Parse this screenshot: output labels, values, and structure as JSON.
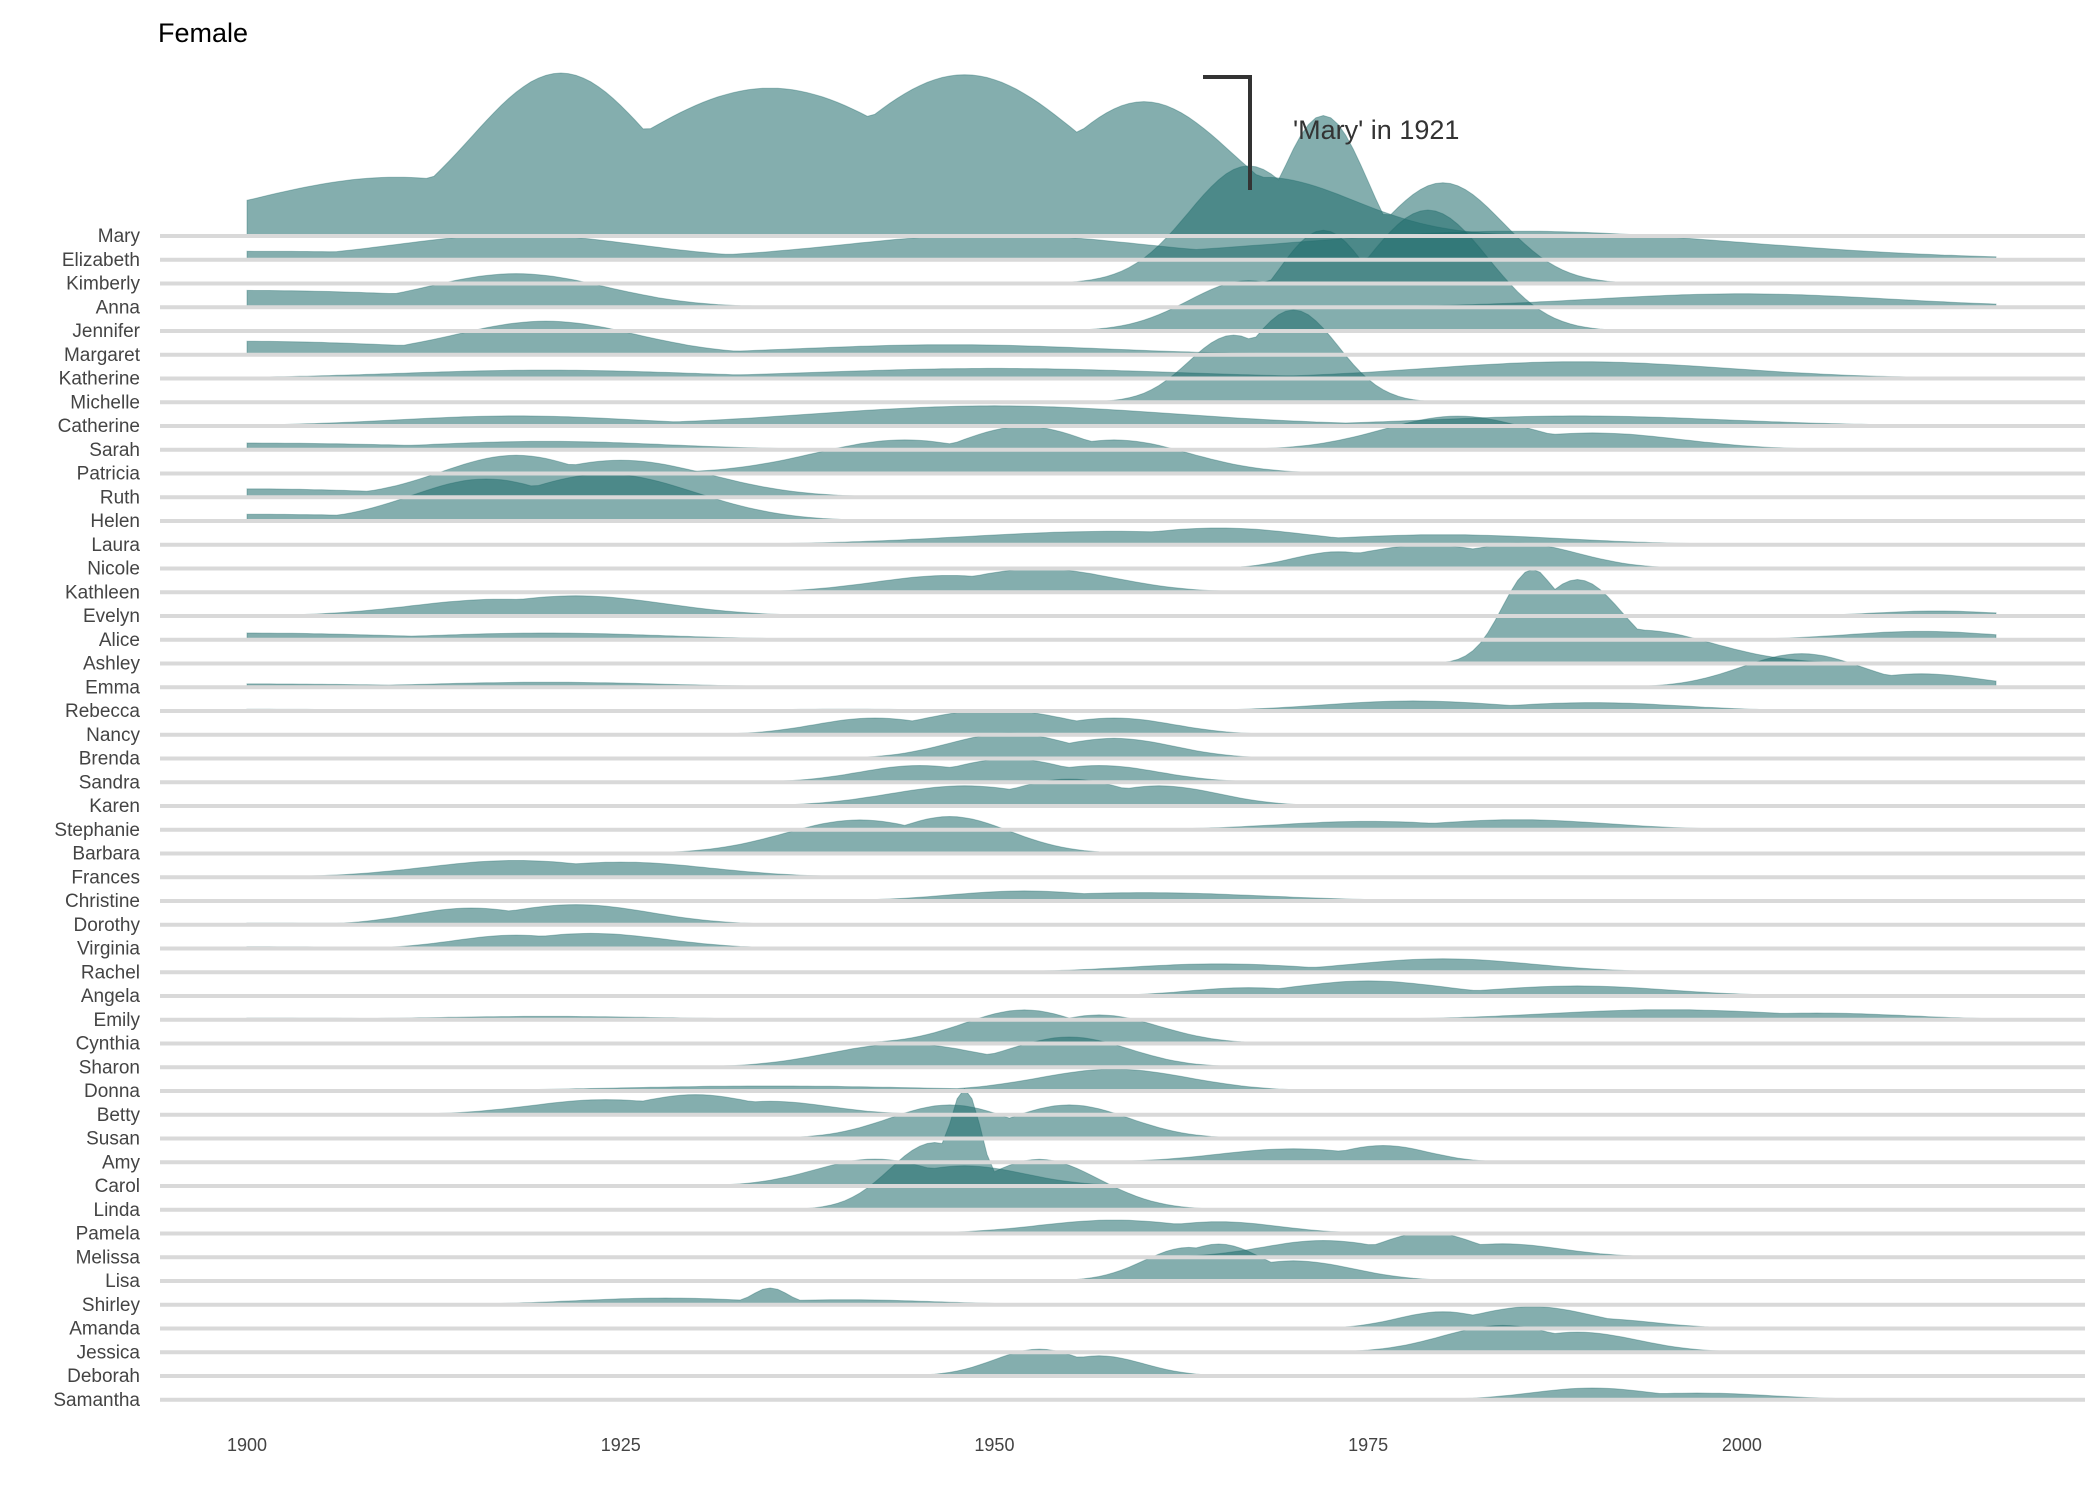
{
  "chart_data": {
    "type": "ridgeline",
    "title": "Female",
    "xlabel": "",
    "ylabel": "",
    "xlim": [
      1900,
      2017
    ],
    "x_ticks": [
      1900,
      1925,
      1950,
      1975,
      2000
    ],
    "grid": false,
    "colors": {
      "fill": "#1f6b6b",
      "baseline": "#d9d9d9"
    },
    "annotation": {
      "text": "'Mary' in 1921",
      "target_series": "Mary",
      "x": 1921
    },
    "series": [
      {
        "name": "Mary",
        "peaks": [
          [
            1900,
            0.15,
            12
          ],
          [
            1910,
            0.35,
            10
          ],
          [
            1921,
            0.97,
            6
          ],
          [
            1935,
            0.88,
            10
          ],
          [
            1948,
            0.96,
            8
          ],
          [
            1960,
            0.8,
            6
          ],
          [
            1968,
            0.35,
            6
          ]
        ]
      },
      {
        "name": "Elizabeth",
        "peaks": [
          [
            1900,
            0.05,
            20
          ],
          [
            1918,
            0.15,
            8
          ],
          [
            1950,
            0.15,
            10
          ],
          [
            1985,
            0.17,
            15
          ]
        ]
      },
      {
        "name": "Kimberly",
        "peaks": [
          [
            1967,
            0.7,
            4
          ],
          [
            1972,
            1.0,
            3
          ],
          [
            1980,
            0.6,
            4
          ]
        ]
      },
      {
        "name": "Anna",
        "peaks": [
          [
            1900,
            0.1,
            15
          ],
          [
            1918,
            0.2,
            6
          ],
          [
            2000,
            0.08,
            10
          ]
        ]
      },
      {
        "name": "Jennifer",
        "peaks": [
          [
            1967,
            0.3,
            4
          ],
          [
            1972,
            0.6,
            3
          ],
          [
            1979,
            0.72,
            4
          ]
        ]
      },
      {
        "name": "Margaret",
        "peaks": [
          [
            1900,
            0.08,
            12
          ],
          [
            1920,
            0.2,
            6
          ],
          [
            1947,
            0.06,
            10
          ]
        ]
      },
      {
        "name": "Katherine",
        "peaks": [
          [
            1920,
            0.05,
            10
          ],
          [
            1950,
            0.06,
            12
          ],
          [
            1989,
            0.1,
            10
          ]
        ]
      },
      {
        "name": "Michelle",
        "peaks": [
          [
            1966,
            0.4,
            3
          ],
          [
            1970,
            0.55,
            3
          ]
        ]
      },
      {
        "name": "Catherine",
        "peaks": [
          [
            1918,
            0.06,
            8
          ],
          [
            1950,
            0.12,
            12
          ],
          [
            1989,
            0.06,
            10
          ]
        ]
      },
      {
        "name": "Sarah",
        "peaks": [
          [
            1900,
            0.04,
            12
          ],
          [
            1920,
            0.05,
            8
          ],
          [
            1981,
            0.2,
            5
          ],
          [
            1990,
            0.1,
            6
          ]
        ]
      },
      {
        "name": "Patricia",
        "peaks": [
          [
            1944,
            0.2,
            6
          ],
          [
            1952,
            0.28,
            5
          ],
          [
            1958,
            0.2,
            5
          ]
        ]
      },
      {
        "name": "Ruth",
        "peaks": [
          [
            1900,
            0.05,
            10
          ],
          [
            1918,
            0.25,
            5
          ],
          [
            1925,
            0.22,
            6
          ]
        ]
      },
      {
        "name": "Helen",
        "peaks": [
          [
            1900,
            0.04,
            12
          ],
          [
            1916,
            0.25,
            5
          ],
          [
            1924,
            0.28,
            6
          ]
        ]
      },
      {
        "name": "Laura",
        "peaks": [
          [
            1958,
            0.08,
            10
          ],
          [
            1965,
            0.1,
            6
          ],
          [
            1980,
            0.06,
            8
          ]
        ]
      },
      {
        "name": "Nicole",
        "peaks": [
          [
            1973,
            0.1,
            3
          ],
          [
            1979,
            0.14,
            5
          ],
          [
            1985,
            0.15,
            4
          ]
        ]
      },
      {
        "name": "Kathleen",
        "peaks": [
          [
            1947,
            0.1,
            5
          ],
          [
            1953,
            0.14,
            5
          ]
        ]
      },
      {
        "name": "Evelyn",
        "peaks": [
          [
            1917,
            0.1,
            6
          ],
          [
            1922,
            0.12,
            6
          ],
          [
            2013,
            0.03,
            4
          ]
        ]
      },
      {
        "name": "Alice",
        "peaks": [
          [
            1900,
            0.04,
            10
          ],
          [
            1920,
            0.04,
            8
          ],
          [
            2012,
            0.05,
            5
          ]
        ]
      },
      {
        "name": "Ashley",
        "peaks": [
          [
            1986,
            0.56,
            2
          ],
          [
            1989,
            0.5,
            3
          ],
          [
            1993,
            0.2,
            5
          ]
        ]
      },
      {
        "name": "Emma",
        "peaks": [
          [
            1900,
            0.02,
            10
          ],
          [
            1920,
            0.03,
            8
          ],
          [
            2004,
            0.2,
            4
          ],
          [
            2012,
            0.08,
            4
          ]
        ]
      },
      {
        "name": "Rebecca",
        "peaks": [
          [
            1900,
            0.01,
            10
          ],
          [
            1940,
            0.01,
            8
          ],
          [
            1978,
            0.06,
            6
          ],
          [
            1990,
            0.05,
            6
          ]
        ]
      },
      {
        "name": "Nancy",
        "peaks": [
          [
            1942,
            0.1,
            4
          ],
          [
            1950,
            0.15,
            5
          ],
          [
            1958,
            0.1,
            4
          ]
        ]
      },
      {
        "name": "Brenda",
        "peaks": [
          [
            1951,
            0.15,
            4
          ],
          [
            1958,
            0.12,
            4
          ]
        ]
      },
      {
        "name": "Sandra",
        "peaks": [
          [
            1945,
            0.1,
            4
          ],
          [
            1951,
            0.14,
            4
          ],
          [
            1957,
            0.1,
            4
          ]
        ]
      },
      {
        "name": "Karen",
        "peaks": [
          [
            1948,
            0.12,
            5
          ],
          [
            1955,
            0.16,
            4
          ],
          [
            1961,
            0.12,
            4
          ]
        ]
      },
      {
        "name": "Stephanie",
        "peaks": [
          [
            1975,
            0.05,
            6
          ],
          [
            1985,
            0.06,
            6
          ]
        ]
      },
      {
        "name": "Barbara",
        "peaks": [
          [
            1941,
            0.2,
            5
          ],
          [
            1947,
            0.22,
            4
          ]
        ]
      },
      {
        "name": "Frances",
        "peaks": [
          [
            1918,
            0.1,
            6
          ],
          [
            1925,
            0.09,
            6
          ]
        ]
      },
      {
        "name": "Christine",
        "peaks": [
          [
            1952,
            0.06,
            5
          ],
          [
            1960,
            0.05,
            8
          ]
        ]
      },
      {
        "name": "Dorothy",
        "peaks": [
          [
            1900,
            0.01,
            10
          ],
          [
            1915,
            0.1,
            4
          ],
          [
            1922,
            0.12,
            5
          ]
        ]
      },
      {
        "name": "Virginia",
        "peaks": [
          [
            1900,
            0.01,
            10
          ],
          [
            1918,
            0.08,
            4
          ],
          [
            1923,
            0.09,
            5
          ]
        ]
      },
      {
        "name": "Rachel",
        "peaks": [
          [
            1965,
            0.05,
            6
          ],
          [
            1980,
            0.08,
            6
          ]
        ]
      },
      {
        "name": "Angela",
        "peaks": [
          [
            1967,
            0.05,
            4
          ],
          [
            1975,
            0.09,
            5
          ],
          [
            1989,
            0.06,
            6
          ]
        ]
      },
      {
        "name": "Emily",
        "peaks": [
          [
            1900,
            0.01,
            10
          ],
          [
            1920,
            0.02,
            8
          ],
          [
            1995,
            0.06,
            8
          ],
          [
            2005,
            0.04,
            6
          ]
        ]
      },
      {
        "name": "Cynthia",
        "peaks": [
          [
            1952,
            0.2,
            4
          ],
          [
            1957,
            0.17,
            4
          ]
        ]
      },
      {
        "name": "Sharon",
        "peaks": [
          [
            1944,
            0.14,
            5
          ],
          [
            1955,
            0.18,
            4
          ]
        ]
      },
      {
        "name": "Donna",
        "peaks": [
          [
            1935,
            0.03,
            10
          ],
          [
            1958,
            0.13,
            5
          ]
        ]
      },
      {
        "name": "Betty",
        "peaks": [
          [
            1924,
            0.09,
            5
          ],
          [
            1930,
            0.12,
            4
          ],
          [
            1935,
            0.08,
            4
          ]
        ]
      },
      {
        "name": "Susan",
        "peaks": [
          [
            1947,
            0.2,
            4
          ],
          [
            1955,
            0.2,
            4
          ]
        ]
      },
      {
        "name": "Amy",
        "peaks": [
          [
            1970,
            0.08,
            5
          ],
          [
            1976,
            0.1,
            3
          ]
        ]
      },
      {
        "name": "Carol",
        "peaks": [
          [
            1942,
            0.16,
            4
          ],
          [
            1948,
            0.12,
            4
          ]
        ]
      },
      {
        "name": "Linda",
        "peaks": [
          [
            1946,
            0.4,
            3
          ],
          [
            1948,
            0.72,
            1.2
          ],
          [
            1953,
            0.3,
            4
          ]
        ]
      },
      {
        "name": "Pamela",
        "peaks": [
          [
            1958,
            0.08,
            5
          ],
          [
            1965,
            0.07,
            4
          ]
        ]
      },
      {
        "name": "Melissa",
        "peaks": [
          [
            1972,
            0.1,
            4
          ],
          [
            1979,
            0.15,
            3
          ],
          [
            1984,
            0.08,
            4
          ]
        ]
      },
      {
        "name": "Lisa",
        "peaks": [
          [
            1963,
            0.2,
            3
          ],
          [
            1965,
            0.22,
            3
          ],
          [
            1970,
            0.12,
            4
          ]
        ]
      },
      {
        "name": "Shirley",
        "peaks": [
          [
            1928,
            0.04,
            6
          ],
          [
            1935,
            0.1,
            1.2
          ],
          [
            1940,
            0.03,
            6
          ]
        ]
      },
      {
        "name": "Amanda",
        "peaks": [
          [
            1980,
            0.1,
            3
          ],
          [
            1986,
            0.13,
            4
          ],
          [
            1990,
            0.06,
            4
          ]
        ]
      },
      {
        "name": "Jessica",
        "peaks": [
          [
            1984,
            0.16,
            4
          ],
          [
            1989,
            0.12,
            4
          ]
        ]
      },
      {
        "name": "Deborah",
        "peaks": [
          [
            1953,
            0.16,
            3
          ],
          [
            1957,
            0.12,
            3
          ]
        ]
      },
      {
        "name": "Samantha",
        "peaks": [
          [
            1990,
            0.07,
            4
          ],
          [
            1997,
            0.04,
            5
          ]
        ]
      }
    ]
  }
}
